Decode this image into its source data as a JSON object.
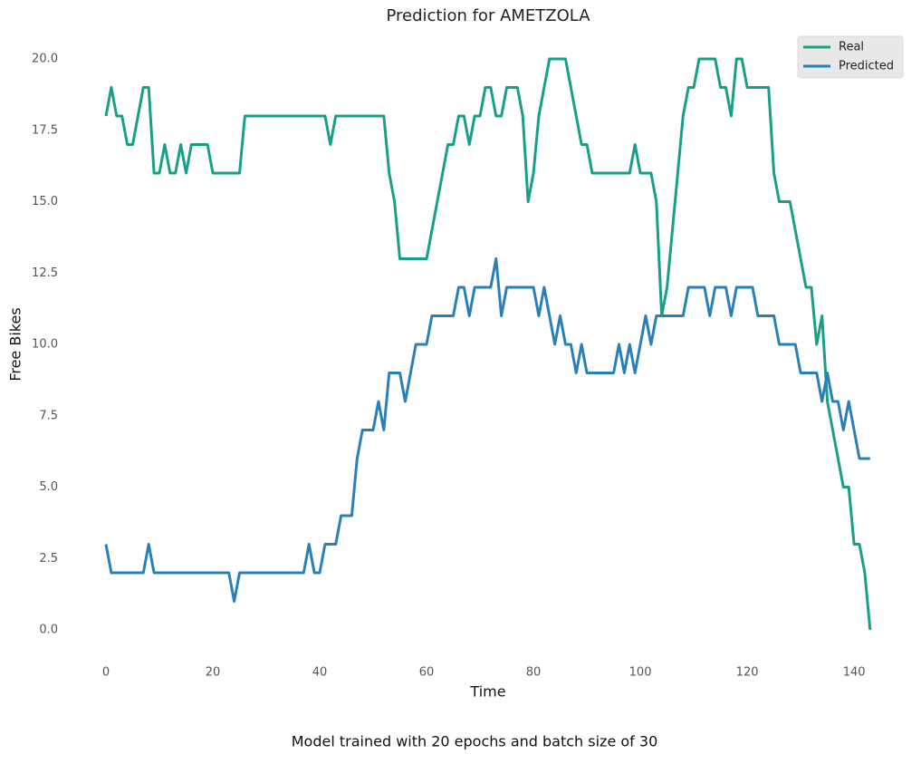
{
  "chart_data": {
    "type": "line",
    "title": "Prediction for AMETZOLA",
    "x_label": "Time",
    "y_label": "Free Bikes",
    "caption": "Model trained with 20 epochs and batch size of 30",
    "legend": "upper right",
    "x": [
      0,
      1,
      2,
      3,
      4,
      5,
      6,
      7,
      8,
      9,
      10,
      11,
      12,
      13,
      14,
      15,
      16,
      17,
      18,
      19,
      20,
      21,
      22,
      23,
      24,
      25,
      26,
      27,
      28,
      29,
      30,
      31,
      32,
      33,
      34,
      35,
      36,
      37,
      38,
      39,
      40,
      41,
      42,
      43,
      44,
      45,
      46,
      47,
      48,
      49,
      50,
      51,
      52,
      53,
      54,
      55,
      56,
      57,
      58,
      59,
      60,
      61,
      62,
      63,
      64,
      65,
      66,
      67,
      68,
      69,
      70,
      71,
      72,
      73,
      74,
      75,
      76,
      77,
      78,
      79,
      80,
      81,
      82,
      83,
      84,
      85,
      86,
      87,
      88,
      89,
      90,
      91,
      92,
      93,
      94,
      95,
      96,
      97,
      98,
      99,
      100,
      101,
      102,
      103,
      104,
      105,
      106,
      107,
      108,
      109,
      110,
      111,
      112,
      113,
      114,
      115,
      116,
      117,
      118,
      119,
      120,
      121,
      122,
      123,
      124,
      125,
      126,
      127,
      128,
      129,
      130,
      131,
      132,
      133,
      134,
      135,
      136,
      137,
      138,
      139,
      140,
      141,
      142,
      143
    ],
    "series": [
      {
        "name": "Real",
        "color": "#17a085",
        "values": [
          18,
          19,
          18,
          18,
          17,
          17,
          18,
          19,
          19,
          16,
          16,
          17,
          16,
          16,
          17,
          16,
          17,
          17,
          17,
          17,
          16,
          16,
          16,
          16,
          16,
          16,
          18,
          18,
          18,
          18,
          18,
          18,
          18,
          18,
          18,
          18,
          18,
          18,
          18,
          18,
          18,
          18,
          17,
          18,
          18,
          18,
          18,
          18,
          18,
          18,
          18,
          18,
          18,
          16,
          15,
          13,
          13,
          13,
          13,
          13,
          13,
          14,
          15,
          16,
          17,
          17,
          18,
          18,
          17,
          18,
          18,
          19,
          19,
          18,
          18,
          19,
          19,
          19,
          18,
          15,
          16,
          18,
          19,
          20,
          20,
          20,
          20,
          19,
          18,
          17,
          17,
          16,
          16,
          16,
          16,
          16,
          16,
          16,
          16,
          17,
          16,
          16,
          16,
          15,
          11,
          12,
          14,
          16,
          18,
          19,
          19,
          20,
          20,
          20,
          20,
          19,
          19,
          18,
          20,
          20,
          19,
          19,
          19,
          19,
          19,
          16,
          15,
          15,
          15,
          14,
          13,
          12,
          12,
          10,
          11,
          8,
          7,
          6,
          5,
          5,
          3,
          3,
          2,
          0
        ]
      },
      {
        "name": "Predicted",
        "color": "#2980b9",
        "values": [
          3,
          2,
          2,
          2,
          2,
          2,
          2,
          2,
          3,
          2,
          2,
          2,
          2,
          2,
          2,
          2,
          2,
          2,
          2,
          2,
          2,
          2,
          2,
          2,
          1,
          2,
          2,
          2,
          2,
          2,
          2,
          2,
          2,
          2,
          2,
          2,
          2,
          2,
          3,
          2,
          2,
          3,
          3,
          3,
          4,
          4,
          4,
          6,
          7,
          7,
          7,
          8,
          7,
          9,
          9,
          9,
          8,
          9,
          10,
          10,
          10,
          11,
          11,
          11,
          11,
          11,
          12,
          12,
          11,
          12,
          12,
          12,
          12,
          13,
          11,
          12,
          12,
          12,
          12,
          12,
          12,
          11,
          12,
          11,
          10,
          11,
          10,
          10,
          9,
          10,
          9,
          9,
          9,
          9,
          9,
          9,
          10,
          9,
          10,
          9,
          10,
          11,
          10,
          11,
          11,
          11,
          11,
          11,
          11,
          12,
          12,
          12,
          12,
          11,
          12,
          12,
          12,
          11,
          12,
          12,
          12,
          12,
          11,
          11,
          11,
          11,
          10,
          10,
          10,
          10,
          9,
          9,
          9,
          9,
          8,
          9,
          8,
          8,
          7,
          8,
          7,
          6,
          6,
          6
        ]
      }
    ],
    "xlim": [
      -7.15,
      150.15
    ],
    "ylim": [
      -1,
      21
    ],
    "xticks": [
      0,
      20,
      40,
      60,
      80,
      100,
      120,
      140
    ],
    "yticks": [
      {
        "value": 0,
        "label": "0.0"
      },
      2.5,
      {
        "value": 5,
        "label": "5.0"
      },
      7.5,
      {
        "value": 10,
        "label": "10.0"
      },
      12.5,
      {
        "value": 15,
        "label": "15.0"
      },
      17.5,
      {
        "value": 20,
        "label": "20.0"
      }
    ]
  }
}
